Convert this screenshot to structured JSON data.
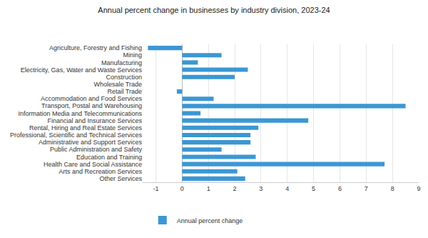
{
  "chart_data": {
    "type": "bar",
    "title": "Annual percent change in businesses by industry division, 2023-24",
    "orientation": "horizontal",
    "categories": [
      "Agriculture, Forestry and Fishing",
      "Mining",
      "Manufacturing",
      "Electricity, Gas, Water and Waste Services",
      "Construction",
      "Wholesale Trade",
      "Retail Trade",
      "Accommodation and Food Services",
      "Transport, Postal and Warehousing",
      "Information Media and Telecommunications",
      "Financial and Insurance Services",
      "Rental, Hiring and Real Estate Services",
      "Professional, Scientific and Technical Services",
      "Administrative and Support Services",
      "Public Administration and Safety",
      "Education and Training",
      "Health Care and Social Assistance",
      "Arts and Recreation Services",
      "Other Services"
    ],
    "series": [
      {
        "name": "Annual percent change",
        "color": "#3b97d3",
        "values": [
          -1.3,
          1.5,
          0.6,
          2.5,
          2.0,
          0.0,
          -0.2,
          1.2,
          8.5,
          0.7,
          4.8,
          2.9,
          2.6,
          2.6,
          1.5,
          2.8,
          7.7,
          2.1,
          2.4
        ]
      }
    ],
    "xlim": [
      -1.5,
      9
    ],
    "xticks": [
      -1,
      0,
      1,
      2,
      3,
      4,
      5,
      6,
      7,
      8,
      9
    ],
    "grid": true,
    "legend": "bottom"
  }
}
